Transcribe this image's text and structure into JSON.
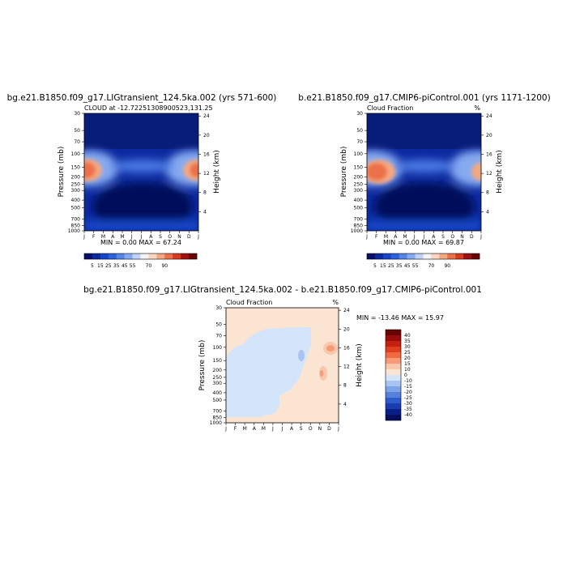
{
  "chart_data": [
    {
      "type": "heatmap",
      "title": "bg.e21.B1850.f09_g17.LIGtransient_124.5ka.002 (yrs 571-600)",
      "subtitle": "CLOUD at -12.72251308900523,131.25",
      "corner_label": "",
      "stats": "MIN =   0.00 MAX =  67.24",
      "xlabel": "",
      "ylabel": "Pressure (mb)",
      "ylabel_right": "Height (km)",
      "x_ticks": [
        "J",
        "F",
        "M",
        "A",
        "M",
        "J",
        "J",
        "A",
        "S",
        "O",
        "N",
        "D",
        "J"
      ],
      "y_ticks": [
        "30",
        "50",
        "70",
        "100",
        "150",
        "200",
        "250",
        "300",
        "400",
        "500",
        "700",
        "850",
        "1000"
      ],
      "y_ticks_right": [
        "24",
        "20",
        "16",
        "12",
        "8",
        "4"
      ],
      "colorbar_labels": [
        "5",
        "15",
        "25",
        "35",
        "45",
        "55",
        "70",
        "90"
      ]
    },
    {
      "type": "heatmap",
      "title": "b.e21.B1850.f09_g17.CMIP6-piControl.001 (yrs 1171-1200)",
      "subtitle": "Cloud Fraction",
      "corner_label": "%",
      "stats": "MIN =   0.00 MAX =  69.87",
      "xlabel": "",
      "ylabel": "Pressure (mb)",
      "ylabel_right": "Height (km)",
      "x_ticks": [
        "J",
        "F",
        "M",
        "A",
        "M",
        "J",
        "J",
        "A",
        "S",
        "O",
        "N",
        "D",
        "J"
      ],
      "y_ticks": [
        "30",
        "50",
        "70",
        "100",
        "150",
        "200",
        "250",
        "300",
        "400",
        "500",
        "700",
        "850",
        "1000"
      ],
      "y_ticks_right": [
        "24",
        "20",
        "16",
        "12",
        "8",
        "4"
      ],
      "colorbar_labels": [
        "5",
        "15",
        "25",
        "35",
        "45",
        "55",
        "70",
        "90"
      ]
    },
    {
      "type": "heatmap",
      "title": "bg.e21.B1850.f09_g17.LIGtransient_124.5ka.002 - b.e21.B1850.f09_g17.CMIP6-piControl.001",
      "subtitle": "Cloud Fraction",
      "corner_label": "%",
      "stats": "MIN = -13.46 MAX =  15.97",
      "xlabel": "",
      "ylabel": "Pressure (mb)",
      "ylabel_right": "Height (km)",
      "x_ticks": [
        "J",
        "F",
        "M",
        "A",
        "M",
        "J",
        "J",
        "A",
        "S",
        "O",
        "N",
        "D",
        "J"
      ],
      "y_ticks": [
        "30",
        "50",
        "70",
        "100",
        "150",
        "200",
        "250",
        "300",
        "400",
        "500",
        "700",
        "850",
        "1000"
      ],
      "y_ticks_right": [
        "24",
        "20",
        "16",
        "12",
        "8",
        "4"
      ],
      "colorbar_labels": [
        "40",
        "35",
        "30",
        "25",
        "20",
        "15",
        "10",
        "0",
        "-10",
        "-15",
        "-20",
        "-25",
        "-30",
        "-35",
        "-40"
      ]
    }
  ],
  "colors": {
    "seq": [
      "#08106b",
      "#0c2aa0",
      "#1846c8",
      "#2e62dc",
      "#5486e6",
      "#86aaf0",
      "#c0d2f8",
      "#f4f4f4",
      "#f8d6c0",
      "#f4a880",
      "#ec7048",
      "#d83c20",
      "#a01010",
      "#6a0404"
    ],
    "div": [
      "#6a0404",
      "#9a0c0c",
      "#c42010",
      "#e03e1c",
      "#f06a44",
      "#f69a78",
      "#f8c8ac",
      "#fbe4d2",
      "#d4e4fa",
      "#a8c4f0",
      "#7ea2e6",
      "#5680da",
      "#2e5ccc",
      "#1a3cb0",
      "#0a1e88",
      "#050f5e"
    ]
  }
}
